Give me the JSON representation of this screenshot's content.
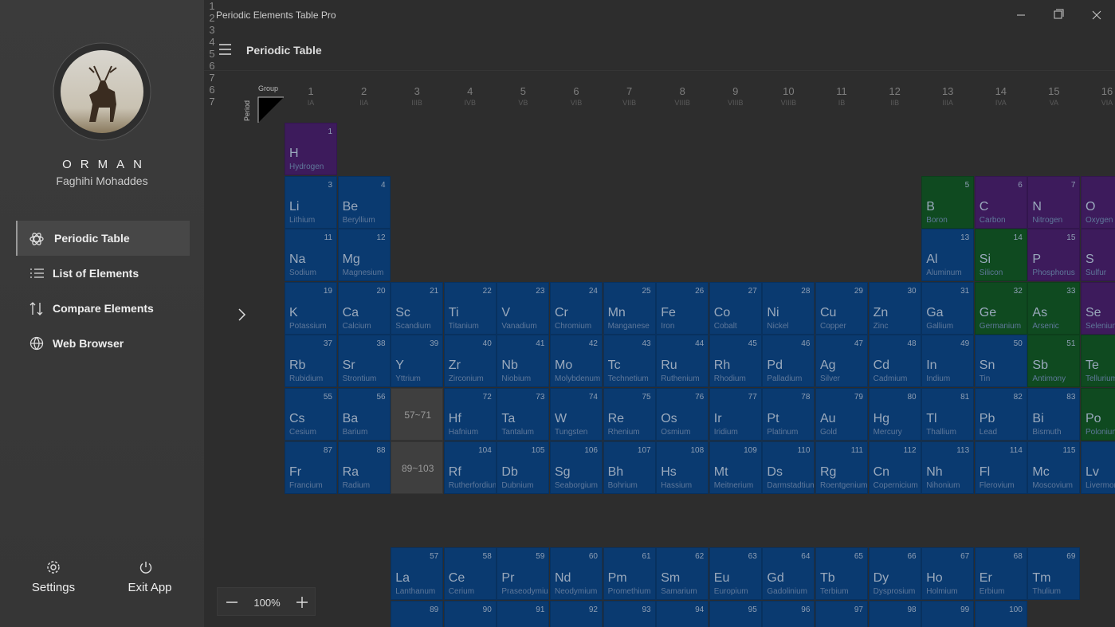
{
  "app": {
    "title": "Periodic Elements Table Pro"
  },
  "profile": {
    "name": "ORMAN",
    "subtitle": "Faghihi Mohaddes"
  },
  "nav": [
    "Periodic Table",
    "List of Elements",
    "Compare Elements",
    "Web Browser"
  ],
  "footer": [
    "Settings",
    "Exit App"
  ],
  "header": {
    "title": "Periodic Table"
  },
  "zoom": "100%",
  "table": {
    "group_label": "Group",
    "period_label": "Period",
    "palette": {
      "metal": "#0a3a70",
      "metalloid": "#0f4a20",
      "nonmetal": "#3d1b5c"
    },
    "groups": [
      {
        "number": "1",
        "label": "IA"
      },
      {
        "number": "2",
        "label": "IIA"
      },
      {
        "number": "3",
        "label": "IIIB"
      },
      {
        "number": "4",
        "label": "IVB"
      },
      {
        "number": "5",
        "label": "VB"
      },
      {
        "number": "6",
        "label": "VIB"
      },
      {
        "number": "7",
        "label": "VIIB"
      },
      {
        "number": "8",
        "label": "VIIIB"
      },
      {
        "number": "9",
        "label": "VIIIB"
      },
      {
        "number": "10",
        "label": "VIIIB"
      },
      {
        "number": "11",
        "label": "IB"
      },
      {
        "number": "12",
        "label": "IIB"
      },
      {
        "number": "13",
        "label": "IIIA"
      },
      {
        "number": "14",
        "label": "IVA"
      },
      {
        "number": "15",
        "label": "VA"
      },
      {
        "number": "16",
        "label": "VIA"
      }
    ],
    "periods": [
      "1",
      "2",
      "3",
      "4",
      "5",
      "6",
      "7"
    ],
    "f_periods": [
      "6",
      "7"
    ],
    "placeholders": [
      "57~71",
      "89~103"
    ],
    "elements": [
      {
        "n": 1,
        "s": "H",
        "name": "Hydrogen",
        "k": "nonmetal"
      },
      {
        "n": 3,
        "s": "Li",
        "name": "Lithium",
        "k": "metal"
      },
      {
        "n": 4,
        "s": "Be",
        "name": "Beryllium",
        "k": "metal"
      },
      {
        "n": 5,
        "s": "B",
        "name": "Boron",
        "k": "metalloid"
      },
      {
        "n": 6,
        "s": "C",
        "name": "Carbon",
        "k": "nonmetal"
      },
      {
        "n": 7,
        "s": "N",
        "name": "Nitrogen",
        "k": "nonmetal"
      },
      {
        "n": 8,
        "s": "O",
        "name": "Oxygen",
        "k": "nonmetal"
      },
      {
        "n": 11,
        "s": "Na",
        "name": "Sodium",
        "k": "metal"
      },
      {
        "n": 12,
        "s": "Mg",
        "name": "Magnesium",
        "k": "metal"
      },
      {
        "n": 13,
        "s": "Al",
        "name": "Aluminum",
        "k": "metal"
      },
      {
        "n": 14,
        "s": "Si",
        "name": "Silicon",
        "k": "metalloid"
      },
      {
        "n": 15,
        "s": "P",
        "name": "Phosphorus",
        "k": "nonmetal"
      },
      {
        "n": 16,
        "s": "S",
        "name": "Sulfur",
        "k": "nonmetal"
      },
      {
        "n": 19,
        "s": "K",
        "name": "Potassium",
        "k": "metal"
      },
      {
        "n": 20,
        "s": "Ca",
        "name": "Calcium",
        "k": "metal"
      },
      {
        "n": 21,
        "s": "Sc",
        "name": "Scandium",
        "k": "metal"
      },
      {
        "n": 22,
        "s": "Ti",
        "name": "Titanium",
        "k": "metal"
      },
      {
        "n": 23,
        "s": "V",
        "name": "Vanadium",
        "k": "metal"
      },
      {
        "n": 24,
        "s": "Cr",
        "name": "Chromium",
        "k": "metal"
      },
      {
        "n": 25,
        "s": "Mn",
        "name": "Manganese",
        "k": "metal"
      },
      {
        "n": 26,
        "s": "Fe",
        "name": "Iron",
        "k": "metal"
      },
      {
        "n": 27,
        "s": "Co",
        "name": "Cobalt",
        "k": "metal"
      },
      {
        "n": 28,
        "s": "Ni",
        "name": "Nickel",
        "k": "metal"
      },
      {
        "n": 29,
        "s": "Cu",
        "name": "Copper",
        "k": "metal"
      },
      {
        "n": 30,
        "s": "Zn",
        "name": "Zinc",
        "k": "metal"
      },
      {
        "n": 31,
        "s": "Ga",
        "name": "Gallium",
        "k": "metal"
      },
      {
        "n": 32,
        "s": "Ge",
        "name": "Germanium",
        "k": "metalloid"
      },
      {
        "n": 33,
        "s": "As",
        "name": "Arsenic",
        "k": "metalloid"
      },
      {
        "n": 34,
        "s": "Se",
        "name": "Selenium",
        "k": "nonmetal"
      },
      {
        "n": 37,
        "s": "Rb",
        "name": "Rubidium",
        "k": "metal"
      },
      {
        "n": 38,
        "s": "Sr",
        "name": "Strontium",
        "k": "metal"
      },
      {
        "n": 39,
        "s": "Y",
        "name": "Yttrium",
        "k": "metal"
      },
      {
        "n": 40,
        "s": "Zr",
        "name": "Zirconium",
        "k": "metal"
      },
      {
        "n": 41,
        "s": "Nb",
        "name": "Niobium",
        "k": "metal"
      },
      {
        "n": 42,
        "s": "Mo",
        "name": "Molybdenum",
        "k": "metal"
      },
      {
        "n": 43,
        "s": "Tc",
        "name": "Technetium",
        "k": "metal"
      },
      {
        "n": 44,
        "s": "Ru",
        "name": "Ruthenium",
        "k": "metal"
      },
      {
        "n": 45,
        "s": "Rh",
        "name": "Rhodium",
        "k": "metal"
      },
      {
        "n": 46,
        "s": "Pd",
        "name": "Palladium",
        "k": "metal"
      },
      {
        "n": 47,
        "s": "Ag",
        "name": "Silver",
        "k": "metal"
      },
      {
        "n": 48,
        "s": "Cd",
        "name": "Cadmium",
        "k": "metal"
      },
      {
        "n": 49,
        "s": "In",
        "name": "Indium",
        "k": "metal"
      },
      {
        "n": 50,
        "s": "Sn",
        "name": "Tin",
        "k": "metal"
      },
      {
        "n": 51,
        "s": "Sb",
        "name": "Antimony",
        "k": "metalloid"
      },
      {
        "n": 52,
        "s": "Te",
        "name": "Tellurium",
        "k": "metalloid"
      },
      {
        "n": 55,
        "s": "Cs",
        "name": "Cesium",
        "k": "metal"
      },
      {
        "n": 56,
        "s": "Ba",
        "name": "Barium",
        "k": "metal"
      },
      {
        "n": 72,
        "s": "Hf",
        "name": "Hafnium",
        "k": "metal"
      },
      {
        "n": 73,
        "s": "Ta",
        "name": "Tantalum",
        "k": "metal"
      },
      {
        "n": 74,
        "s": "W",
        "name": "Tungsten",
        "k": "metal"
      },
      {
        "n": 75,
        "s": "Re",
        "name": "Rhenium",
        "k": "metal"
      },
      {
        "n": 76,
        "s": "Os",
        "name": "Osmium",
        "k": "metal"
      },
      {
        "n": 77,
        "s": "Ir",
        "name": "Iridium",
        "k": "metal"
      },
      {
        "n": 78,
        "s": "Pt",
        "name": "Platinum",
        "k": "metal"
      },
      {
        "n": 79,
        "s": "Au",
        "name": "Gold",
        "k": "metal"
      },
      {
        "n": 80,
        "s": "Hg",
        "name": "Mercury",
        "k": "metal"
      },
      {
        "n": 81,
        "s": "Tl",
        "name": "Thallium",
        "k": "metal"
      },
      {
        "n": 82,
        "s": "Pb",
        "name": "Lead",
        "k": "metal"
      },
      {
        "n": 83,
        "s": "Bi",
        "name": "Bismuth",
        "k": "metal"
      },
      {
        "n": 84,
        "s": "Po",
        "name": "Polonium",
        "k": "metalloid"
      },
      {
        "n": 87,
        "s": "Fr",
        "name": "Francium",
        "k": "metal"
      },
      {
        "n": 88,
        "s": "Ra",
        "name": "Radium",
        "k": "metal"
      },
      {
        "n": 104,
        "s": "Rf",
        "name": "Rutherfordium",
        "k": "metal"
      },
      {
        "n": 105,
        "s": "Db",
        "name": "Dubnium",
        "k": "metal"
      },
      {
        "n": 106,
        "s": "Sg",
        "name": "Seaborgium",
        "k": "metal"
      },
      {
        "n": 107,
        "s": "Bh",
        "name": "Bohrium",
        "k": "metal"
      },
      {
        "n": 108,
        "s": "Hs",
        "name": "Hassium",
        "k": "metal"
      },
      {
        "n": 109,
        "s": "Mt",
        "name": "Meitnerium",
        "k": "metal"
      },
      {
        "n": 110,
        "s": "Ds",
        "name": "Darmstadtium",
        "k": "metal"
      },
      {
        "n": 111,
        "s": "Rg",
        "name": "Roentgenium",
        "k": "metal"
      },
      {
        "n": 112,
        "s": "Cn",
        "name": "Copernicium",
        "k": "metal"
      },
      {
        "n": 113,
        "s": "Nh",
        "name": "Nihonium",
        "k": "metal"
      },
      {
        "n": 114,
        "s": "Fl",
        "name": "Flerovium",
        "k": "metal"
      },
      {
        "n": 115,
        "s": "Mc",
        "name": "Moscovium",
        "k": "metal"
      },
      {
        "n": 116,
        "s": "Lv",
        "name": "Livermorium",
        "k": "metal"
      },
      {
        "n": 57,
        "s": "La",
        "name": "Lanthanum",
        "k": "metal"
      },
      {
        "n": 58,
        "s": "Ce",
        "name": "Cerium",
        "k": "metal"
      },
      {
        "n": 59,
        "s": "Pr",
        "name": "Praseodymium",
        "k": "metal"
      },
      {
        "n": 60,
        "s": "Nd",
        "name": "Neodymium",
        "k": "metal"
      },
      {
        "n": 61,
        "s": "Pm",
        "name": "Promethium",
        "k": "metal"
      },
      {
        "n": 62,
        "s": "Sm",
        "name": "Samarium",
        "k": "metal"
      },
      {
        "n": 63,
        "s": "Eu",
        "name": "Europium",
        "k": "metal"
      },
      {
        "n": 64,
        "s": "Gd",
        "name": "Gadolinium",
        "k": "metal"
      },
      {
        "n": 65,
        "s": "Tb",
        "name": "Terbium",
        "k": "metal"
      },
      {
        "n": 66,
        "s": "Dy",
        "name": "Dysprosium",
        "k": "metal"
      },
      {
        "n": 67,
        "s": "Ho",
        "name": "Holmium",
        "k": "metal"
      },
      {
        "n": 68,
        "s": "Er",
        "name": "Erbium",
        "k": "metal"
      },
      {
        "n": 69,
        "s": "Tm",
        "name": "Thulium",
        "k": "metal"
      }
    ],
    "actinide_numbers": [
      89,
      90,
      91,
      92,
      93,
      94,
      95,
      96,
      97,
      98,
      99,
      100
    ]
  }
}
